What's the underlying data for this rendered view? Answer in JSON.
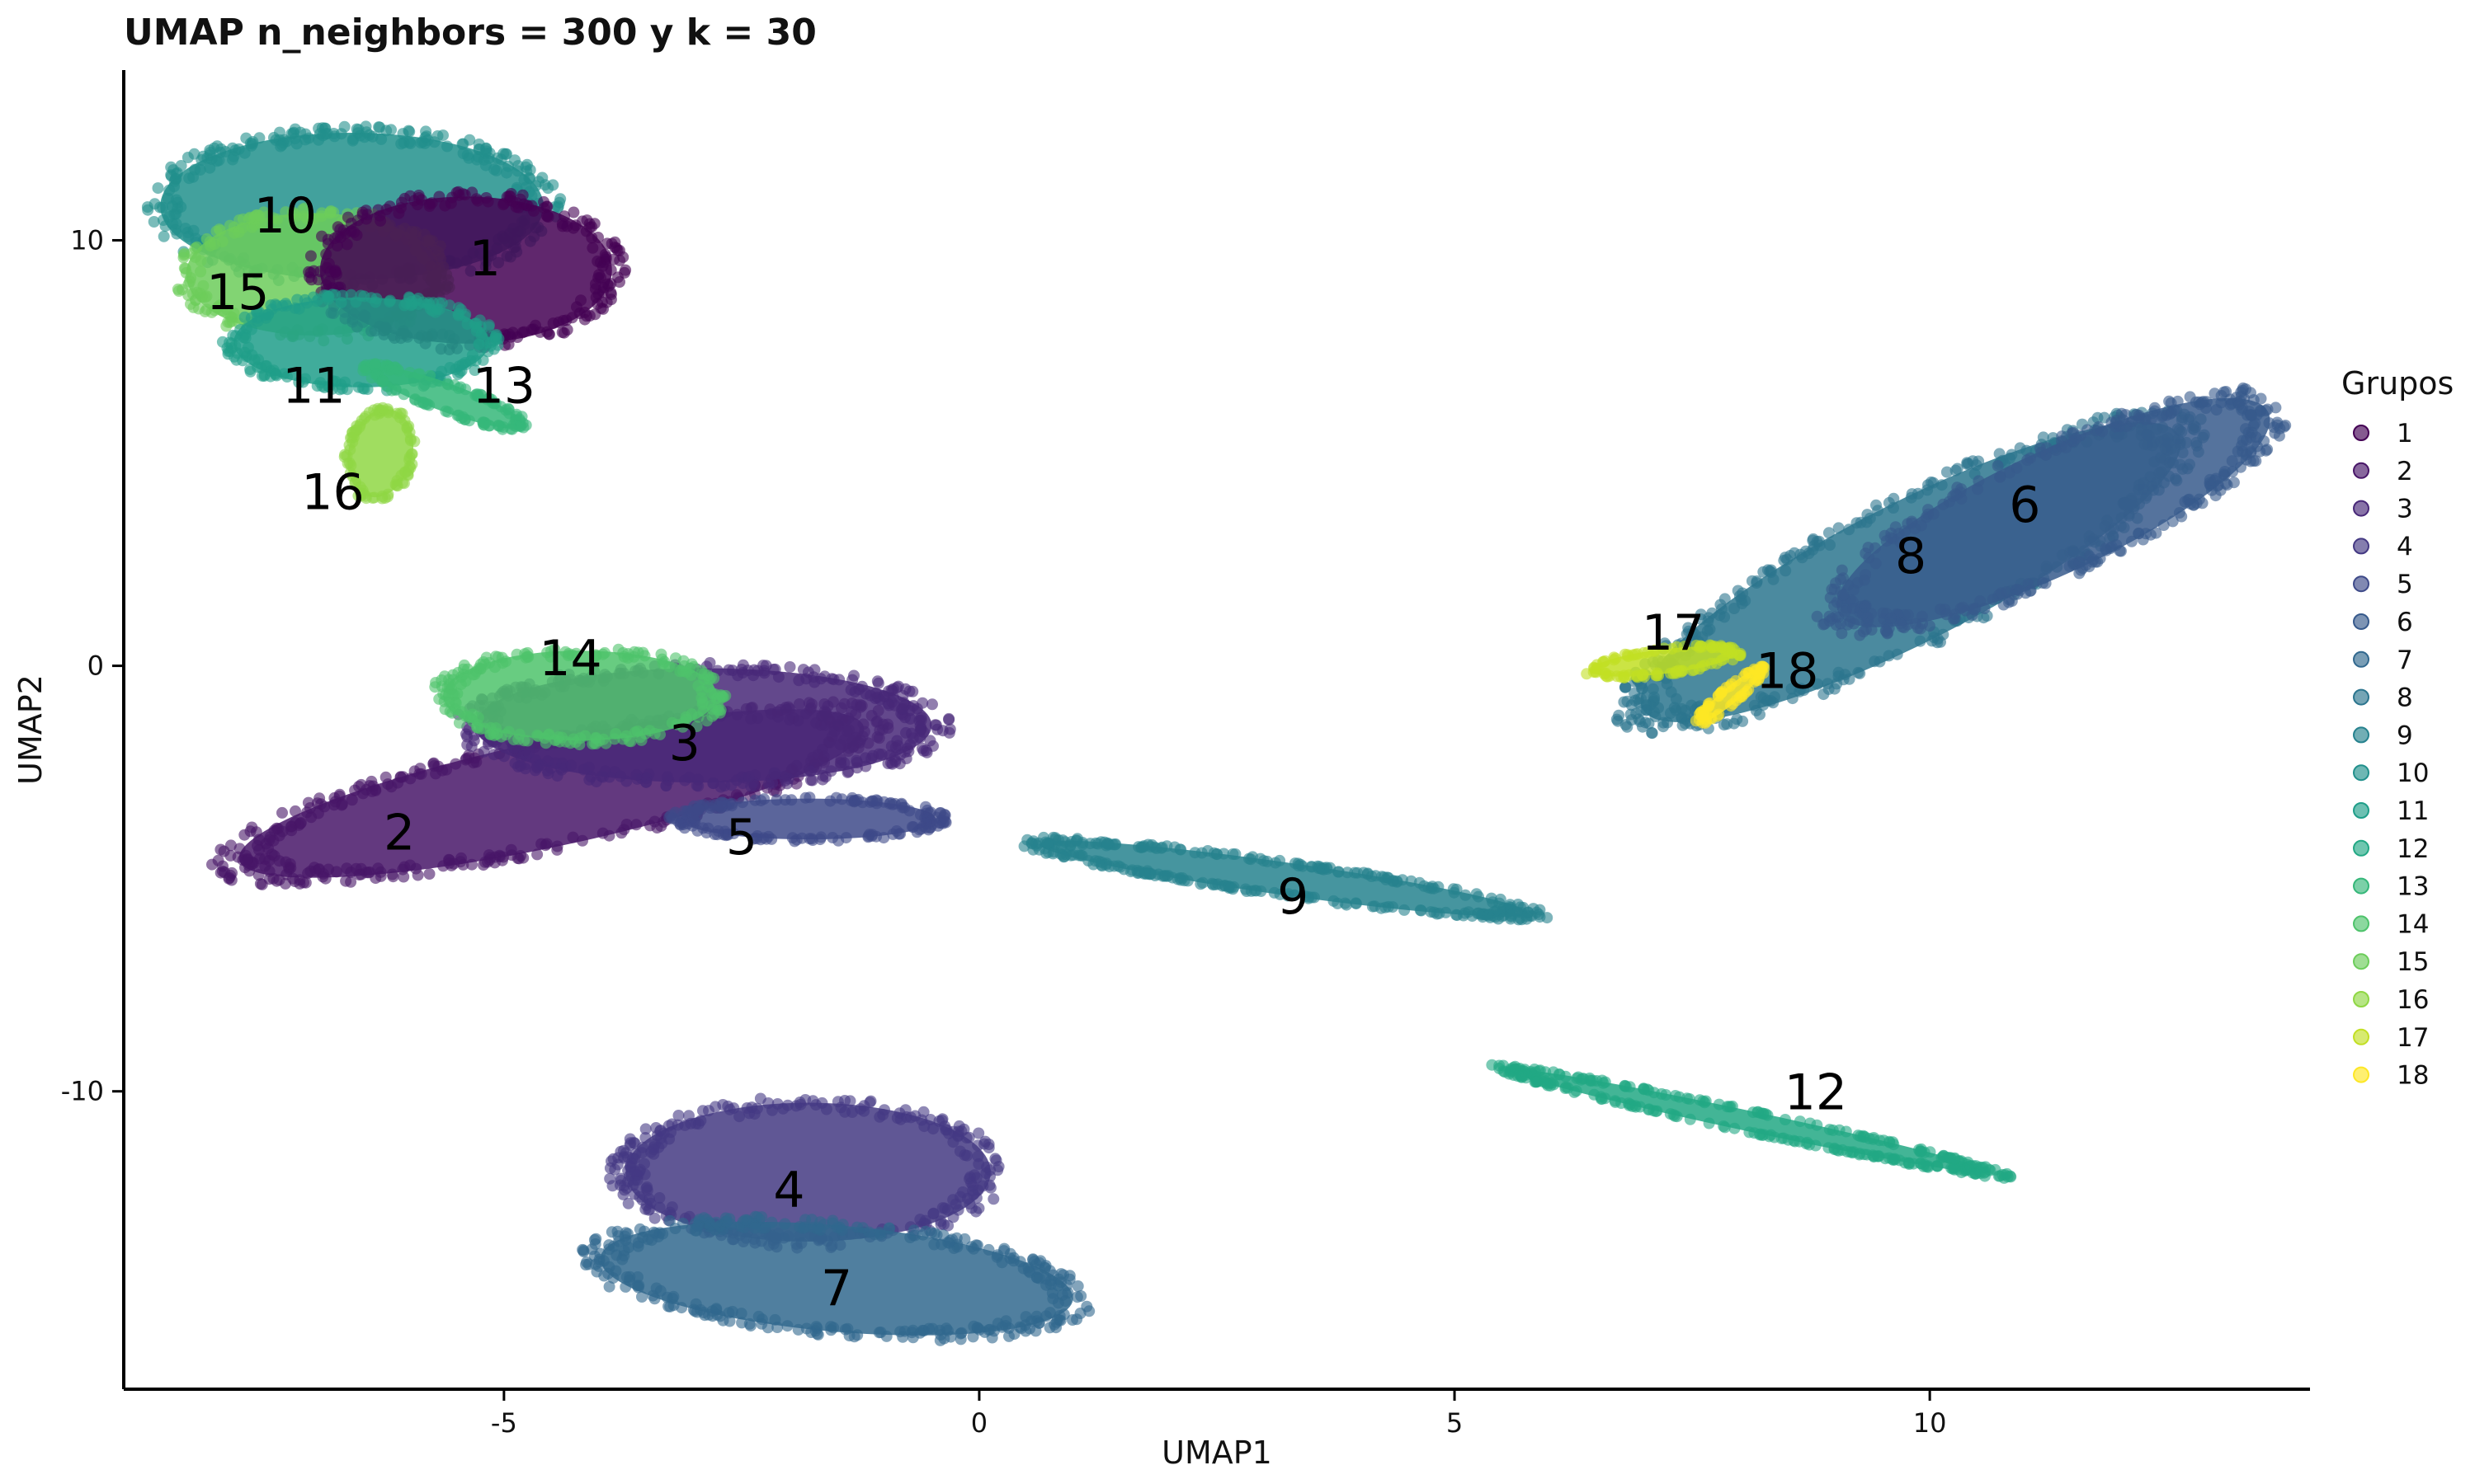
{
  "chart_data": {
    "type": "scatter",
    "title": "UMAP n_neighbors = 300 y k = 30",
    "xlabel": "UMAP1",
    "ylabel": "UMAP2",
    "xlim": [
      -9,
      14
    ],
    "ylim": [
      -17,
      14
    ],
    "x_ticks": [
      -5,
      0,
      5,
      10
    ],
    "y_ticks": [
      10,
      0,
      -10
    ],
    "x_tick_labels": [
      "-5",
      "0",
      "5",
      "10"
    ],
    "y_tick_labels": [
      "10",
      "0",
      "-10"
    ],
    "grid": false,
    "legend": {
      "title": "Grupos",
      "position": "right"
    },
    "series": [
      {
        "name": "1",
        "color": "#440154",
        "label_pos": [
          -5.2,
          9.5
        ]
      },
      {
        "name": "2",
        "color": "#481668",
        "label_pos": [
          -6.1,
          -4.0
        ]
      },
      {
        "name": "3",
        "color": "#482878",
        "label_pos": [
          -3.1,
          -1.9
        ]
      },
      {
        "name": "4",
        "color": "#443983",
        "label_pos": [
          -2.0,
          -12.4
        ]
      },
      {
        "name": "5",
        "color": "#3E4A89",
        "label_pos": [
          -2.5,
          -4.1
        ]
      },
      {
        "name": "6",
        "color": "#375A8C",
        "label_pos": [
          11.0,
          3.7
        ]
      },
      {
        "name": "7",
        "color": "#31688E",
        "label_pos": [
          -1.5,
          -14.7
        ]
      },
      {
        "name": "8",
        "color": "#2B758E",
        "label_pos": [
          9.8,
          2.5
        ]
      },
      {
        "name": "9",
        "color": "#26828E",
        "label_pos": [
          3.3,
          -5.5
        ]
      },
      {
        "name": "10",
        "color": "#21908C",
        "label_pos": [
          -7.3,
          10.5
        ]
      },
      {
        "name": "11",
        "color": "#1F9E89",
        "label_pos": [
          -7.0,
          6.5
        ]
      },
      {
        "name": "12",
        "color": "#22A884",
        "label_pos": [
          8.8,
          -10.1
        ]
      },
      {
        "name": "13",
        "color": "#35B779",
        "label_pos": [
          -5.0,
          6.5
        ]
      },
      {
        "name": "14",
        "color": "#4EC36B",
        "label_pos": [
          -4.3,
          0.1
        ]
      },
      {
        "name": "15",
        "color": "#6CCD5A",
        "label_pos": [
          -7.8,
          8.7
        ]
      },
      {
        "name": "16",
        "color": "#8FD744",
        "label_pos": [
          -6.8,
          4.0
        ]
      },
      {
        "name": "17",
        "color": "#C2DF23",
        "label_pos": [
          7.3,
          0.7
        ]
      },
      {
        "name": "18",
        "color": "#FDE725",
        "label_pos": [
          8.5,
          -0.2
        ]
      }
    ],
    "clusters": [
      {
        "group": "10",
        "shape": "ellipse",
        "center": [
          -6.6,
          10.8
        ],
        "radii": [
          2.1,
          1.8
        ],
        "angle": 0
      },
      {
        "group": "15",
        "shape": "ellipse",
        "center": [
          -7.0,
          9.2
        ],
        "radii": [
          1.4,
          1.5
        ],
        "angle": 0
      },
      {
        "group": "1",
        "shape": "ellipse",
        "center": [
          -5.4,
          9.3
        ],
        "radii": [
          1.6,
          1.8
        ],
        "angle": 0
      },
      {
        "group": "11",
        "shape": "ellipse",
        "center": [
          -6.5,
          7.6
        ],
        "radii": [
          1.4,
          1.1
        ],
        "angle": 0
      },
      {
        "group": "13",
        "shape": "ellipse",
        "center": [
          -5.6,
          6.3
        ],
        "radii": [
          0.9,
          0.35
        ],
        "angle": -20
      },
      {
        "group": "16",
        "shape": "ellipse",
        "center": [
          -6.3,
          5.0
        ],
        "radii": [
          0.35,
          1.1
        ],
        "angle": -15
      },
      {
        "group": "2",
        "shape": "ellipse",
        "center": [
          -4.5,
          -3.0
        ],
        "radii": [
          3.5,
          1.3
        ],
        "angle": 12
      },
      {
        "group": "3",
        "shape": "ellipse",
        "center": [
          -2.9,
          -1.4
        ],
        "radii": [
          2.5,
          1.4
        ],
        "angle": 0
      },
      {
        "group": "14",
        "shape": "ellipse",
        "center": [
          -4.2,
          -0.7
        ],
        "radii": [
          1.5,
          1.1
        ],
        "angle": 0
      },
      {
        "group": "5",
        "shape": "ellipse",
        "center": [
          -1.8,
          -3.6
        ],
        "radii": [
          1.4,
          0.5
        ],
        "angle": 0
      },
      {
        "group": "4",
        "shape": "ellipse",
        "center": [
          -1.8,
          -11.9
        ],
        "radii": [
          2.0,
          1.7
        ],
        "angle": 0
      },
      {
        "group": "7",
        "shape": "ellipse",
        "center": [
          -1.5,
          -14.4
        ],
        "radii": [
          2.6,
          1.3
        ],
        "angle": -5
      },
      {
        "group": "9",
        "shape": "ellipse",
        "center": [
          3.2,
          -5.0
        ],
        "radii": [
          2.7,
          0.4
        ],
        "angle": -8
      },
      {
        "group": "12",
        "shape": "ellipse",
        "center": [
          8.1,
          -10.7
        ],
        "radii": [
          2.7,
          0.25
        ],
        "angle": -12
      },
      {
        "group": "8",
        "shape": "ellipse",
        "center": [
          9.8,
          2.2
        ],
        "radii": [
          3.3,
          1.7
        ],
        "angle": 27
      },
      {
        "group": "6",
        "shape": "ellipse",
        "center": [
          11.3,
          3.6
        ],
        "radii": [
          2.6,
          1.5
        ],
        "angle": 25
      },
      {
        "group": "17",
        "shape": "ellipse",
        "center": [
          7.2,
          0.1
        ],
        "radii": [
          0.8,
          0.3
        ],
        "angle": 7
      },
      {
        "group": "18",
        "shape": "ellipse",
        "center": [
          7.9,
          -0.7
        ],
        "radii": [
          0.45,
          0.2
        ],
        "angle": 40
      }
    ]
  }
}
